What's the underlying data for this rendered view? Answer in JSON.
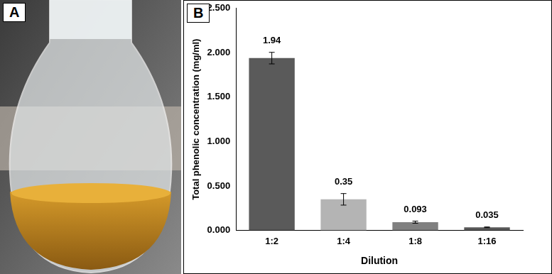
{
  "panel_labels": [
    "A",
    "B"
  ],
  "chart_data": {
    "type": "bar",
    "x_label": "Dilution",
    "y_label": "Total phenolic concentration (mg/ml)",
    "categories": [
      "1:2",
      "1:4",
      "1:8",
      "1:16"
    ],
    "values": [
      1.94,
      0.35,
      0.093,
      0.035
    ],
    "errors": [
      0.065,
      0.065,
      0.012,
      0.004
    ],
    "colors": [
      "#5a5a5a",
      "#b4b4b4",
      "#808080",
      "#595959"
    ],
    "ylim": [
      0,
      2.5
    ],
    "yticks": [
      {
        "value": 0,
        "label": "0.000"
      },
      {
        "value": 0.5,
        "label": "0.500"
      },
      {
        "value": 1,
        "label": "1.000"
      },
      {
        "value": 1.5,
        "label": "1.500"
      },
      {
        "value": 2,
        "label": "2.000"
      },
      {
        "value": 2.5,
        "label": "2.500"
      }
    ],
    "grid": false,
    "data_labels": true
  }
}
